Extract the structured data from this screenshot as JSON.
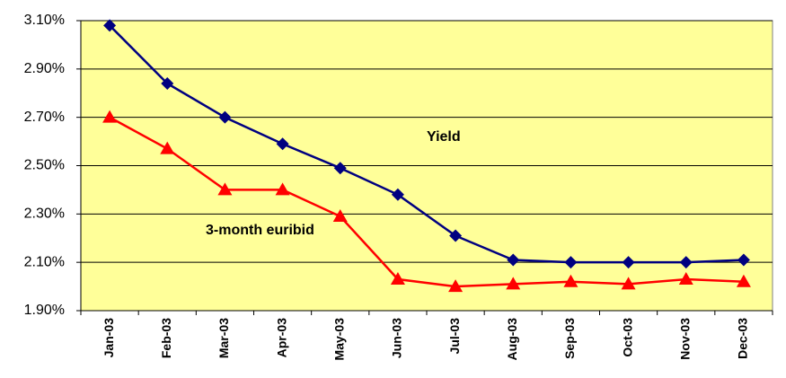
{
  "chart_data": {
    "type": "line",
    "categories": [
      "Jan-03",
      "Feb-03",
      "Mar-03",
      "Apr-03",
      "May-03",
      "Jun-03",
      "Jul-03",
      "Aug-03",
      "Sep-03",
      "Oct-03",
      "Nov-03",
      "Dec-03"
    ],
    "series": [
      {
        "name": "Yield",
        "color": "#000080",
        "marker": "diamond",
        "values": [
          3.08,
          2.84,
          2.7,
          2.59,
          2.49,
          2.38,
          2.21,
          2.11,
          2.1,
          2.1,
          2.1,
          2.11
        ]
      },
      {
        "name": "3-month euribid",
        "color": "#ff0000",
        "marker": "triangle",
        "values": [
          2.7,
          2.57,
          2.4,
          2.4,
          2.29,
          2.03,
          2.0,
          2.01,
          2.02,
          2.01,
          2.03,
          2.02
        ]
      }
    ],
    "ylim": [
      1.9,
      3.1
    ],
    "yticks": [
      {
        "value": 1.9,
        "label": "1.90%"
      },
      {
        "value": 2.1,
        "label": "2.10%"
      },
      {
        "value": 2.3,
        "label": "2.30%"
      },
      {
        "value": 2.5,
        "label": "2.50%"
      },
      {
        "value": 2.7,
        "label": "2.70%"
      },
      {
        "value": 2.9,
        "label": "2.90%"
      },
      {
        "value": 3.1,
        "label": "3.10%"
      }
    ],
    "grid": true,
    "background": "#ffff99"
  }
}
